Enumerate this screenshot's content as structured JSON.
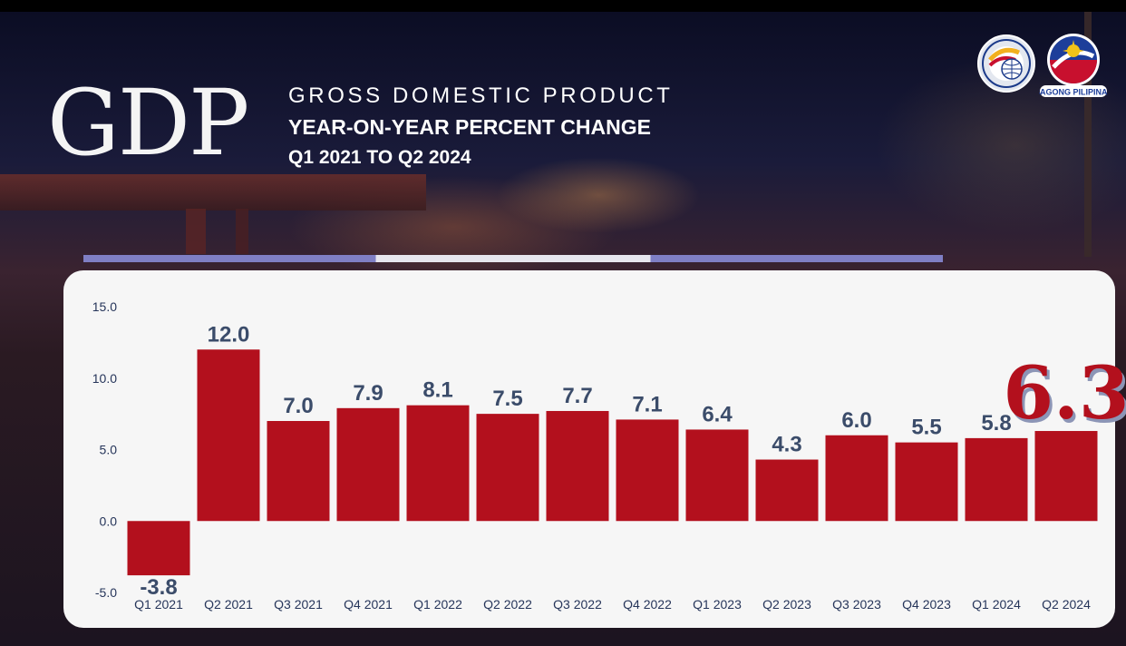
{
  "header": {
    "wordmark": "GDP",
    "title_line_1": "GROSS DOMESTIC PRODUCT",
    "title_line_2": "YEAR-ON-YEAR PERCENT CHANGE",
    "title_line_3": "Q1 2021 TO Q2 2024",
    "logo_text": "BAGONG PILIPINAS"
  },
  "colors": {
    "bar": "#b3101d",
    "value_label": "#3b4c6a",
    "highlight_label": "#b3101d",
    "axis_text": "#26355a",
    "panel": "#f6f6f6",
    "accent_stripe": "#7f7fc4"
  },
  "chart_data": {
    "type": "bar",
    "categories": [
      "Q1 2021",
      "Q2 2021",
      "Q3 2021",
      "Q4 2021",
      "Q1 2022",
      "Q2 2022",
      "Q3 2022",
      "Q4 2022",
      "Q1 2023",
      "Q2 2023",
      "Q3 2023",
      "Q4 2023",
      "Q1 2024",
      "Q2 2024"
    ],
    "values": [
      -3.8,
      12.0,
      7.0,
      7.9,
      8.1,
      7.5,
      7.7,
      7.1,
      6.4,
      4.3,
      6.0,
      5.5,
      5.8,
      6.3
    ],
    "value_labels": [
      "-3.8",
      "12.0",
      "7.0",
      "7.9",
      "8.1",
      "7.5",
      "7.7",
      "7.1",
      "6.4",
      "4.3",
      "6.0",
      "5.5",
      "5.8",
      "6.3"
    ],
    "highlight_index": 13,
    "yticks": [
      -5.0,
      0.0,
      5.0,
      10.0,
      15.0
    ],
    "ytick_labels": [
      "-5.0",
      "0.0",
      "5.0",
      "10.0",
      "15.0"
    ],
    "ylim": [
      -5.0,
      15.0
    ],
    "title": "",
    "xlabel": "",
    "ylabel": "",
    "grid": false,
    "legend": "none"
  }
}
